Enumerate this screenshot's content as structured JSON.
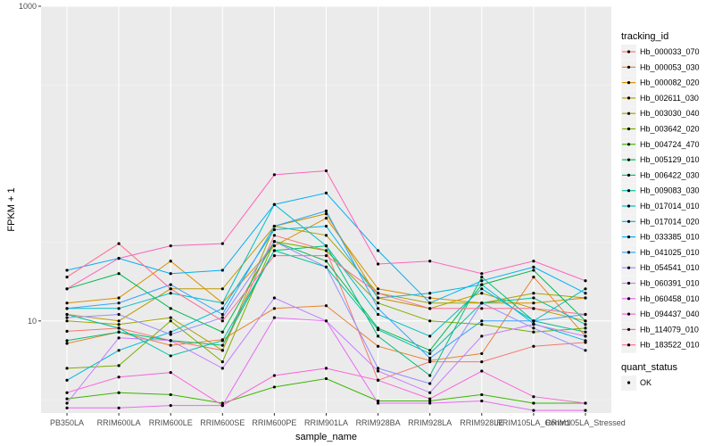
{
  "chart_data": {
    "type": "line",
    "xlabel": "sample_name",
    "ylabel": "FPKM + 1",
    "y_scale": "log10",
    "ylim": [
      2.6,
      1000
    ],
    "y_ticks": [
      10,
      1000
    ],
    "categories": [
      "PB350LA",
      "RRIM600LA",
      "RRIM600LE",
      "RRIM600SE",
      "RRIM600PE",
      "RRIM901LA",
      "RRIM928BA",
      "RRIM928LA",
      "RRIM928LE",
      "RRIM105LA_Control",
      "RRIM105LA_Stressed"
    ],
    "category_labels": [
      "PB350LA",
      "RRIM600LA",
      "RRIM600LE",
      "RRIM600SE",
      "RRIM600PE",
      "RRIM901LA",
      "RRIM928BA",
      "RRIM928LA",
      "RRIM928LE",
      "RRIM105LA_Control",
      "RRIM105LA_Stressed"
    ],
    "legend": {
      "title": "tracking_id",
      "placement": "right"
    },
    "legend2": {
      "title": "quant_status",
      "entries": [
        "OK"
      ]
    },
    "grid": true,
    "series": [
      {
        "name": "Hb_000033_070",
        "color": "#F8766D",
        "values": [
          8.6,
          9.0,
          7.5,
          6.5,
          35,
          28,
          4.2,
          5.5,
          5.5,
          6.9,
          7.3
        ]
      },
      {
        "name": "Hb_000053_030",
        "color": "#EA8331",
        "values": [
          7.2,
          8.5,
          7.0,
          7.6,
          12,
          12.5,
          6.9,
          5.6,
          6.2,
          19,
          8.0
        ]
      },
      {
        "name": "Hb_000082_020",
        "color": "#D89000",
        "values": [
          13,
          14,
          24,
          13,
          30,
          45,
          16,
          14,
          13,
          13,
          14
        ]
      },
      {
        "name": "Hb_002611_030",
        "color": "#C09B00",
        "values": [
          11,
          10,
          16,
          16,
          40,
          48,
          14,
          12,
          15,
          12,
          10
        ]
      },
      {
        "name": "Hb_003030_040",
        "color": "#A3A500",
        "values": [
          10,
          9.5,
          10.5,
          6.5,
          40,
          35,
          15,
          13,
          13,
          15,
          14
        ]
      },
      {
        "name": "Hb_003642_020",
        "color": "#7CAE00",
        "values": [
          5.0,
          5.2,
          10,
          5.5,
          32,
          28,
          13,
          10,
          9.5,
          8.5,
          9.0
        ]
      },
      {
        "name": "Hb_004724_470",
        "color": "#39B600",
        "values": [
          3.2,
          3.5,
          3.4,
          3.0,
          3.8,
          4.3,
          3.1,
          3.1,
          3.4,
          3.0,
          3.0
        ]
      },
      {
        "name": "Hb_005129_010",
        "color": "#00BB4E",
        "values": [
          16,
          20,
          12,
          8.5,
          32,
          24,
          9.0,
          6.5,
          17,
          21,
          10
        ]
      },
      {
        "name": "Hb_006422_030",
        "color": "#00BF7D",
        "values": [
          7.5,
          8.5,
          7.5,
          7.0,
          28,
          30,
          8.0,
          4.5,
          19,
          10,
          8.5
        ]
      },
      {
        "name": "Hb_009083_030",
        "color": "#00C1A3",
        "values": [
          11,
          9.0,
          6.0,
          7.5,
          28,
          22,
          8.8,
          6.2,
          13,
          14,
          9.5
        ]
      },
      {
        "name": "Hb_017014_010",
        "color": "#00BFC4",
        "values": [
          12,
          12,
          15,
          13,
          55,
          30,
          11,
          8.0,
          16,
          10,
          16
        ]
      },
      {
        "name": "Hb_017014_020",
        "color": "#00BAE0",
        "values": [
          4.2,
          6.5,
          8.5,
          12,
          38,
          40,
          14,
          15,
          17,
          9.6,
          7.5
        ]
      },
      {
        "name": "Hb_033385_010",
        "color": "#00B0F6",
        "values": [
          21,
          25,
          20,
          21,
          55,
          65,
          28,
          13,
          18,
          22,
          15
        ]
      },
      {
        "name": "Hb_041025_010",
        "color": "#35A2FF",
        "values": [
          12,
          13,
          17,
          11,
          40,
          50,
          12,
          5.8,
          10,
          10,
          11
        ]
      },
      {
        "name": "Hb_054541_010",
        "color": "#9590FF",
        "values": [
          10.5,
          11.0,
          8.2,
          10.5,
          32,
          22,
          5.0,
          4.0,
          13,
          9.0,
          6.5
        ]
      },
      {
        "name": "Hb_060391_010",
        "color": "#C77CFF",
        "values": [
          3.0,
          7.8,
          7.5,
          5.0,
          14,
          10,
          4.8,
          3.5,
          8.0,
          9.5,
          8.0
        ]
      },
      {
        "name": "Hb_060458_010",
        "color": "#E76BF3",
        "values": [
          2.8,
          2.8,
          2.9,
          2.9,
          10.5,
          10,
          3.0,
          3.0,
          3.1,
          2.7,
          2.7
        ]
      },
      {
        "name": "Hb_094437_040",
        "color": "#FA62DB",
        "values": [
          3.5,
          4.4,
          4.7,
          2.9,
          4.5,
          5.0,
          4.2,
          3.2,
          4.8,
          3.3,
          3.0
        ]
      },
      {
        "name": "Hb_114079_010",
        "color": "#FF62BC",
        "values": [
          16,
          25,
          30,
          31,
          85,
          90,
          23,
          24,
          20,
          24,
          18
        ]
      },
      {
        "name": "Hb_183522_010",
        "color": "#FF6C91",
        "values": [
          19,
          31,
          16,
          10,
          26,
          26,
          15,
          12,
          12,
          12,
          11
        ]
      }
    ]
  }
}
